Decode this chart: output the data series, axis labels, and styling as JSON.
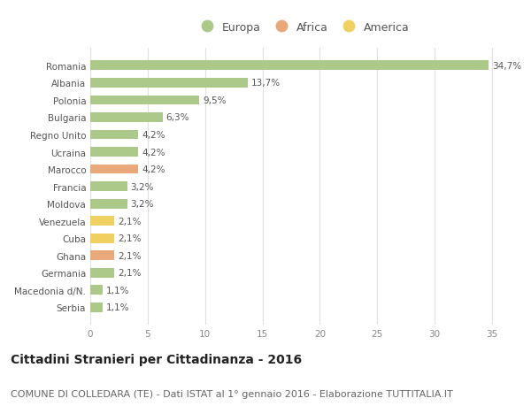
{
  "countries": [
    "Romania",
    "Albania",
    "Polonia",
    "Bulgaria",
    "Regno Unito",
    "Ucraina",
    "Marocco",
    "Francia",
    "Moldova",
    "Venezuela",
    "Cuba",
    "Ghana",
    "Germania",
    "Macedonia d/N.",
    "Serbia"
  ],
  "values": [
    34.7,
    13.7,
    9.5,
    6.3,
    4.2,
    4.2,
    4.2,
    3.2,
    3.2,
    2.1,
    2.1,
    2.1,
    2.1,
    1.1,
    1.1
  ],
  "labels": [
    "34,7%",
    "13,7%",
    "9,5%",
    "6,3%",
    "4,2%",
    "4,2%",
    "4,2%",
    "3,2%",
    "3,2%",
    "2,1%",
    "2,1%",
    "2,1%",
    "2,1%",
    "1,1%",
    "1,1%"
  ],
  "continents": [
    "Europa",
    "Europa",
    "Europa",
    "Europa",
    "Europa",
    "Europa",
    "Africa",
    "Europa",
    "Europa",
    "America",
    "America",
    "Africa",
    "Europa",
    "Europa",
    "Europa"
  ],
  "colors": {
    "Europa": "#adc98a",
    "Africa": "#e8a87a",
    "America": "#f0d060"
  },
  "bar_height": 0.55,
  "xlim": [
    0,
    37
  ],
  "xticks": [
    0,
    5,
    10,
    15,
    20,
    25,
    30,
    35
  ],
  "background_color": "#ffffff",
  "grid_color": "#e0e0e0",
  "title": "Cittadini Stranieri per Cittadinanza - 2016",
  "subtitle": "COMUNE DI COLLEDARA (TE) - Dati ISTAT al 1° gennaio 2016 - Elaborazione TUTTITALIA.IT",
  "legend_labels": [
    "Europa",
    "Africa",
    "America"
  ],
  "legend_colors": [
    "#adc98a",
    "#e8a87a",
    "#f0d060"
  ],
  "title_fontsize": 10,
  "subtitle_fontsize": 8,
  "label_fontsize": 7.5,
  "tick_fontsize": 7.5,
  "legend_fontsize": 9
}
